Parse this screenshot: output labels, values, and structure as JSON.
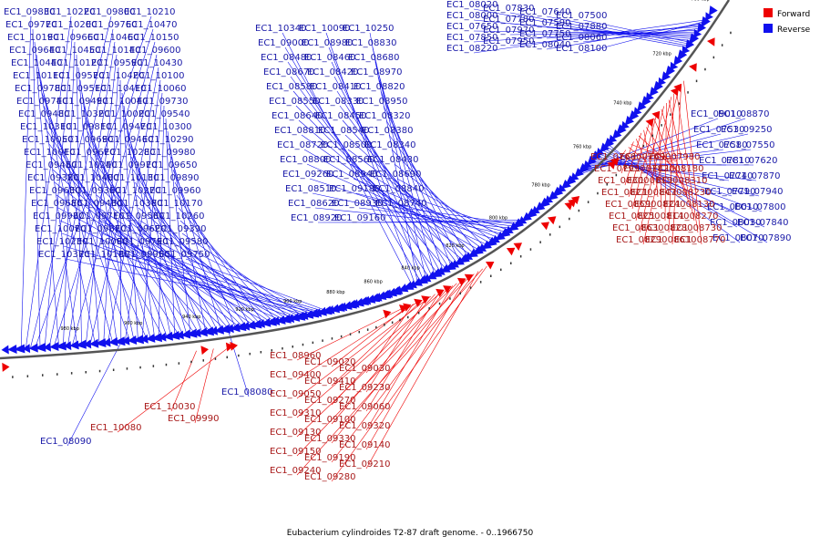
{
  "title": "Eubacterium cylindroides T2-87 draft genome. - 0..1966750",
  "colors": {
    "forward": "#ee0000",
    "reverse": "#1010ee",
    "backbone": "#555555"
  },
  "legend": [
    {
      "label": "Forward",
      "color": "#ee0000"
    },
    {
      "label": "Reverse",
      "color": "#1010ee"
    }
  ],
  "scale_ticks": [
    "700 kbp",
    "720 kbp",
    "740 kbp",
    "760 kbp",
    "780 kbp",
    "800 kbp",
    "820 kbp",
    "840 kbp",
    "860 kbp",
    "880 kbp",
    "900 kbp",
    "920 kbp",
    "940 kbp",
    "960 kbp",
    "980 kbp"
  ],
  "reverse_labels": [
    "EC1_08020",
    "EC1_07830",
    "EC1_07640",
    "EC1_07500",
    "EC1_08000",
    "EC1_07780",
    "EC1_07590",
    "EC1_07880",
    "EC1_07650",
    "EC1_07970",
    "EC1_07750",
    "EC1_08060",
    "EC1_07850",
    "EC1_07950",
    "EC1_08040",
    "EC1_08100",
    "EC1_08220",
    "EC1_09830",
    "EC1_10220",
    "EC1_09800",
    "EC1_10210",
    "EC1_09770",
    "EC1_10200",
    "EC1_09760",
    "EC1_10470",
    "EC1_10190",
    "EC1_09660",
    "EC1_10460",
    "EC1_10150",
    "EC1_09640",
    "EC1_10450",
    "EC1_10140",
    "EC1_09600",
    "EC1_10440",
    "EC1_10120",
    "EC1_09590",
    "EC1_10430",
    "EC1_10110",
    "EC1_09570",
    "EC1_10420",
    "EC1_10100",
    "EC1_09780",
    "EC1_09510",
    "EC1_10410",
    "EC1_10060",
    "EC1_09740",
    "EC1_09490",
    "EC1_10040",
    "EC1_09730",
    "EC1_09480",
    "EC1_10320",
    "EC1_10020",
    "EC1_09540",
    "EC1_10310",
    "EC1_09810",
    "EC1_09470",
    "EC1_10300",
    "EC1_10050",
    "EC1_09690",
    "EC1_09460",
    "EC1_10290",
    "EC1_10010",
    "EC1_09670",
    "EC1_10280",
    "EC1_09980",
    "EC1_09450",
    "EC1_10240",
    "EC1_09970",
    "EC1_09650",
    "EC1_09370",
    "EC1_10400",
    "EC1_10130",
    "EC1_09890",
    "EC1_09630",
    "EC1_09360",
    "EC1_10270",
    "EC1_09960",
    "EC1_09680",
    "EC1_09430",
    "EC1_10380",
    "EC1_10170",
    "EC1_09930",
    "EC1_09710",
    "EC1_09500",
    "EC1_10260",
    "EC1_10070",
    "EC1_09870",
    "EC1_09620",
    "EC1_09390",
    "EC1_10230",
    "EC1_10000",
    "EC1_09790",
    "EC1_09580",
    "EC1_10370",
    "EC1_10180",
    "EC1_09950",
    "EC1_09750",
    "EC1_10340",
    "EC1_10090",
    "EC1_10250",
    "EC1_09000",
    "EC1_08980",
    "EC1_08830",
    "EC1_08480",
    "EC1_08460",
    "EC1_08680",
    "EC1_08670",
    "EC1_08420",
    "EC1_08970",
    "EC1_08580",
    "EC1_08410",
    "EC1_08820",
    "EC1_08550",
    "EC1_08330",
    "EC1_08950",
    "EC1_08640",
    "EC1_08450",
    "EC1_08320",
    "EC1_08810",
    "EC1_08540",
    "EC1_08380",
    "EC1_08720",
    "EC1_08500",
    "EC1_08340",
    "EC1_08800",
    "EC1_08560",
    "EC1_08430",
    "EC1_09260",
    "EC1_08940",
    "EC1_08690",
    "EC1_08510",
    "EC1_09180",
    "EC1_08840",
    "EC1_08620",
    "EC1_08930",
    "EC1_08740",
    "EC1_08920",
    "EC1_09160",
    "EC1_08870",
    "EC1_09010",
    "EC1_09250",
    "EC1_07530",
    "EC1_07550",
    "EC1_07580",
    "EC1_07620",
    "EC1_07810",
    "EC1_07870",
    "EC1_07740",
    "EC1_07940",
    "EC1_07790",
    "EC1_07800",
    "EC1_08010",
    "EC1_07840",
    "EC1_08030",
    "EC1_07890",
    "EC1_08070",
    "EC1_08080",
    "EC1_08090",
    "EC1_09850",
    "EC1_10500"
  ],
  "forward_labels": [
    "EC1_07660",
    "EC1_07690",
    "EC1_07980",
    "EC1_07990",
    "EC1_07820",
    "EC1_08180",
    "EC1_08300",
    "EC1_08190",
    "EC1_08310",
    "EC1_08210",
    "EC1_08470",
    "EC1_08230",
    "EC1_08590",
    "EC1_08240",
    "EC1_08130",
    "EC1_08250",
    "EC1_08140",
    "EC1_08270",
    "EC1_08630",
    "EC1_08280",
    "EC1_08730",
    "EC1_08290",
    "EC1_08610",
    "EC1_08770",
    "EC1_08960",
    "EC1_09020",
    "EC1_09030",
    "EC1_09400",
    "EC1_09410",
    "EC1_09230",
    "EC1_09050",
    "EC1_09270",
    "EC1_09060",
    "EC1_09310",
    "EC1_09100",
    "EC1_09320",
    "EC1_09130",
    "EC1_09330",
    "EC1_09140",
    "EC1_09150",
    "EC1_09190",
    "EC1_09210",
    "EC1_09240",
    "EC1_09280",
    "EC1_10030",
    "EC1_09990",
    "EC1_10080"
  ]
}
